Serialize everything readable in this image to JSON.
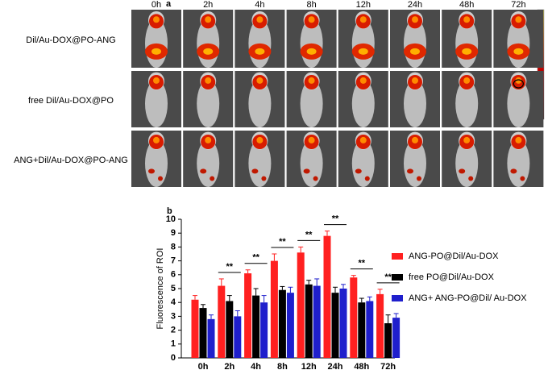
{
  "panel_a": {
    "label": "a",
    "timepoints": [
      "0h",
      "2h",
      "4h",
      "8h",
      "12h",
      "24h",
      "48h",
      "72h"
    ],
    "rows": [
      "Dil/Au-DOX@PO-ANG",
      "free Dil/Au-DOX@PO",
      "ANG+Dil/Au-DOX@PO-ANG"
    ]
  },
  "chart_data": {
    "type": "bar",
    "label": "b",
    "y_label": "Fluorescence of ROI",
    "categories": [
      "0h",
      "2h",
      "4h",
      "8h",
      "12h",
      "24h",
      "48h",
      "72h"
    ],
    "series": [
      {
        "name": "ANG-PO@Dil/Au-DOX",
        "color": "#ff2020",
        "values": [
          4.2,
          5.2,
          6.1,
          7.0,
          7.6,
          8.8,
          5.8,
          4.6
        ],
        "errors": [
          0.3,
          0.5,
          0.25,
          0.5,
          0.4,
          0.35,
          0.15,
          0.35
        ]
      },
      {
        "name": "free PO@Dil/Au-DOX",
        "color": "#000000",
        "values": [
          3.6,
          4.1,
          4.5,
          4.9,
          5.3,
          4.7,
          4.0,
          2.5
        ],
        "errors": [
          0.25,
          0.4,
          0.5,
          0.25,
          0.3,
          0.4,
          0.3,
          0.6
        ]
      },
      {
        "name": "ANG+ ANG-PO@Dil/ Au-DOX",
        "color": "#1f1fcc",
        "values": [
          2.8,
          3.0,
          4.0,
          4.7,
          5.2,
          5.0,
          4.1,
          2.9
        ],
        "errors": [
          0.3,
          0.4,
          0.5,
          0.4,
          0.5,
          0.3,
          0.3,
          0.3
        ]
      }
    ],
    "annotations": [
      {
        "text": "**",
        "category": "2h"
      },
      {
        "text": "**",
        "category": "4h"
      },
      {
        "text": "**",
        "category": "8h"
      },
      {
        "text": "**",
        "category": "12h"
      },
      {
        "text": "**",
        "category": "24h"
      },
      {
        "text": "**",
        "category": "48h"
      },
      {
        "text": "**",
        "category": "72h"
      }
    ],
    "ylim": [
      0,
      10
    ],
    "yticks": [
      0,
      1,
      2,
      3,
      4,
      5,
      6,
      7,
      8,
      9,
      10
    ],
    "legend": "right"
  }
}
